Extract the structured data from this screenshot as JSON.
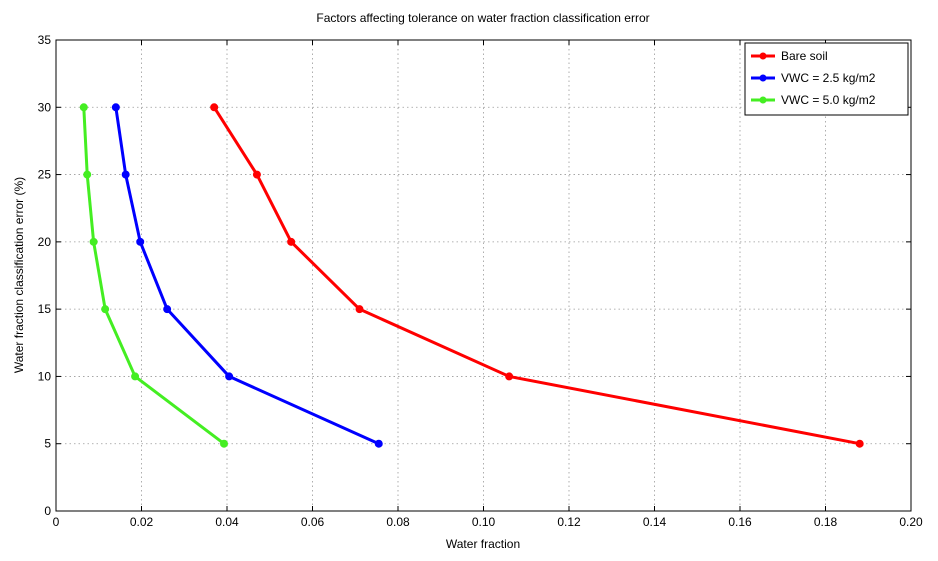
{
  "chart_data": {
    "type": "line",
    "title": "Factors affecting tolerance on water fraction classification error",
    "xlabel": "Water fraction",
    "ylabel": "Water fraction classification error (%)",
    "xlim": [
      0,
      0.2
    ],
    "ylim": [
      0,
      35
    ],
    "xticks": [
      0,
      0.02,
      0.04,
      0.06,
      0.08,
      0.1,
      0.12,
      0.14,
      0.16,
      0.18,
      0.2
    ],
    "xtick_labels": [
      "0",
      "0.02",
      "0.04",
      "0.06",
      "0.08",
      "0.10",
      "0.12",
      "0.14",
      "0.16",
      "0.18",
      "0.20"
    ],
    "yticks": [
      0,
      5,
      10,
      15,
      20,
      25,
      30,
      35
    ],
    "ytick_labels": [
      "0",
      "5",
      "10",
      "15",
      "20",
      "25",
      "30",
      "35"
    ],
    "grid": true,
    "legend_position": "top-right",
    "series": [
      {
        "name": "Bare soil",
        "color": "#ff0000",
        "points": [
          {
            "x": 0.037,
            "y": 30
          },
          {
            "x": 0.047,
            "y": 25
          },
          {
            "x": 0.055,
            "y": 20
          },
          {
            "x": 0.071,
            "y": 15
          },
          {
            "x": 0.106,
            "y": 10
          },
          {
            "x": 0.188,
            "y": 5
          }
        ]
      },
      {
        "name": "VWC = 2.5 kg/m2",
        "color": "#0000ff",
        "points": [
          {
            "x": 0.014,
            "y": 30
          },
          {
            "x": 0.0163,
            "y": 25
          },
          {
            "x": 0.0197,
            "y": 20
          },
          {
            "x": 0.026,
            "y": 15
          },
          {
            "x": 0.0405,
            "y": 10
          },
          {
            "x": 0.0755,
            "y": 5
          }
        ]
      },
      {
        "name": "VWC = 5.0 kg/m2",
        "color": "#44ee22",
        "points": [
          {
            "x": 0.0065,
            "y": 30
          },
          {
            "x": 0.0073,
            "y": 25
          },
          {
            "x": 0.0088,
            "y": 20
          },
          {
            "x": 0.0115,
            "y": 15
          },
          {
            "x": 0.0185,
            "y": 10
          },
          {
            "x": 0.0393,
            "y": 5
          }
        ]
      }
    ]
  }
}
